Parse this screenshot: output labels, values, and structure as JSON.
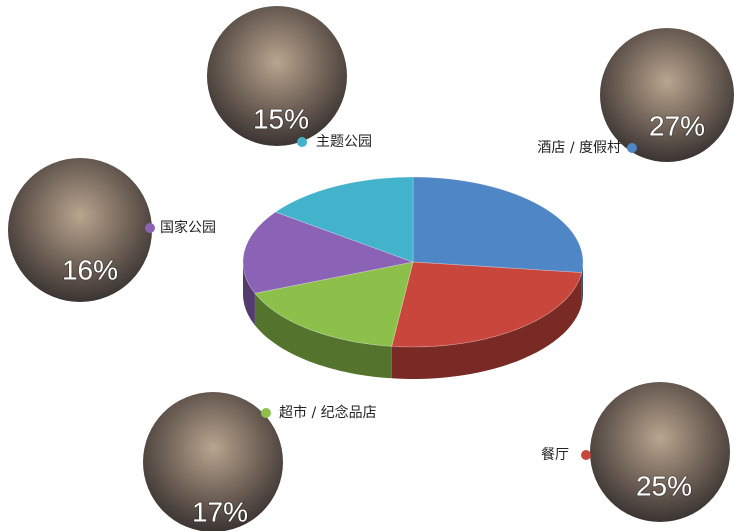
{
  "chart_data": {
    "type": "pie",
    "categories": [
      "酒店 / 度假村",
      "餐厅",
      "超市 / 纪念品店",
      "国家公园",
      "主题公园"
    ],
    "values": [
      27,
      25,
      17,
      16,
      15
    ],
    "value_labels": [
      "27%",
      "25%",
      "17%",
      "16%",
      "15%"
    ],
    "colors": [
      "#4f86c6",
      "#c9463d",
      "#8cc04b",
      "#8a62b6",
      "#43b3cc"
    ],
    "three_d": true
  }
}
